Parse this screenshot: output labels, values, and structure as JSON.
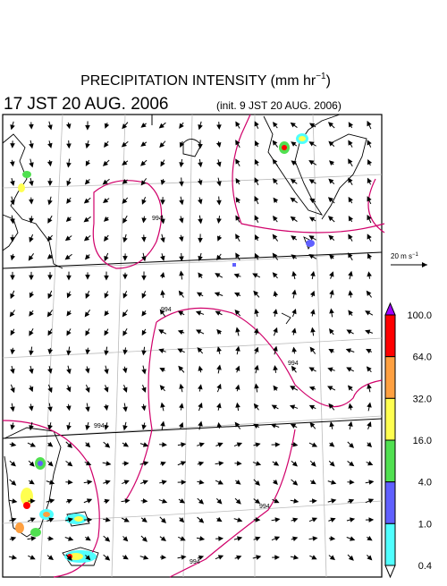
{
  "header": {
    "title": "PRECIPITATION INTENSITY (mm hr",
    "title_sup": "−1",
    "title_end": ")",
    "valid_time": "17 JST 20 AUG. 2006",
    "init_time": "(init. 9 JST 20 AUG. 2006)"
  },
  "vector_legend": {
    "label": "20 m s",
    "label_sup": "−1"
  },
  "colorbar": {
    "labels": [
      "100.0",
      "64.0",
      "32.0",
      "16.0",
      "4.0",
      "1.0",
      "0.4"
    ],
    "colors": [
      "#a000ff",
      "#ff0000",
      "#ffa040",
      "#ffff50",
      "#50e050",
      "#6060ff",
      "#50ffff",
      "#ffffff"
    ]
  },
  "contour_labels": [
    "994",
    "994",
    "994",
    "994",
    "994",
    "994"
  ]
}
